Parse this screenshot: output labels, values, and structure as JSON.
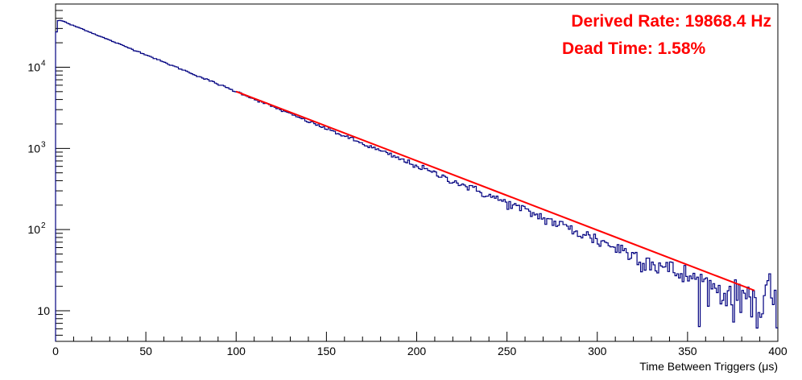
{
  "chart_data": {
    "type": "line",
    "title": "",
    "xlabel": "Time Between Triggers (μs)",
    "ylabel": "",
    "xlim": [
      0,
      400
    ],
    "ylim": [
      4.2,
      60000
    ],
    "yscale": "log",
    "grid": false,
    "legend": "none",
    "x_ticks": [
      0,
      50,
      100,
      150,
      200,
      250,
      300,
      350,
      400
    ],
    "x_tick_labels": [
      "0",
      "50",
      "100",
      "150",
      "200",
      "250",
      "300",
      "350",
      "400"
    ],
    "y_ticks": [
      10,
      100,
      1000,
      10000
    ],
    "y_tick_labels": [
      {
        "base": "10",
        "exp": ""
      },
      {
        "base": "10",
        "exp": "2"
      },
      {
        "base": "10",
        "exp": "3"
      },
      {
        "base": "10",
        "exp": "4"
      }
    ],
    "series": [
      {
        "kind": "histogram",
        "color": "#000080",
        "x": [
          0,
          1,
          2,
          3,
          4,
          5,
          6,
          7,
          8,
          10,
          15,
          20,
          30,
          40,
          50,
          60,
          70,
          80,
          90,
          100,
          102,
          110,
          120,
          130,
          140,
          150,
          160,
          170,
          180,
          190,
          200,
          210,
          220,
          230,
          240,
          250,
          260,
          270,
          280,
          290,
          300,
          310,
          320,
          330,
          340,
          350,
          360,
          370,
          380,
          385,
          390,
          395,
          398,
          400
        ],
        "y": [
          20000,
          37000,
          38000,
          37500,
          37000,
          36500,
          35500,
          34500,
          33500,
          32500,
          29500,
          26500,
          21500,
          17500,
          14300,
          11500,
          9400,
          7600,
          6200,
          5000,
          4850,
          4050,
          3300,
          2650,
          2150,
          1750,
          1420,
          1140,
          930,
          750,
          610,
          490,
          400,
          325,
          262,
          213,
          172,
          140,
          113,
          92,
          75,
          61,
          49,
          40,
          32,
          26.5,
          21.5,
          17.5,
          14.2,
          20,
          8,
          22,
          8,
          16
        ]
      },
      {
        "kind": "fit",
        "color": "#ff0000",
        "x": [
          100,
          387
        ],
        "y": [
          5020,
          17.8
        ]
      }
    ],
    "annotations": [
      {
        "text": "Derived Rate: 19868.4 Hz",
        "color": "#ff0000"
      },
      {
        "text": "Dead Time: 1.58%",
        "color": "#ff0000"
      }
    ]
  }
}
